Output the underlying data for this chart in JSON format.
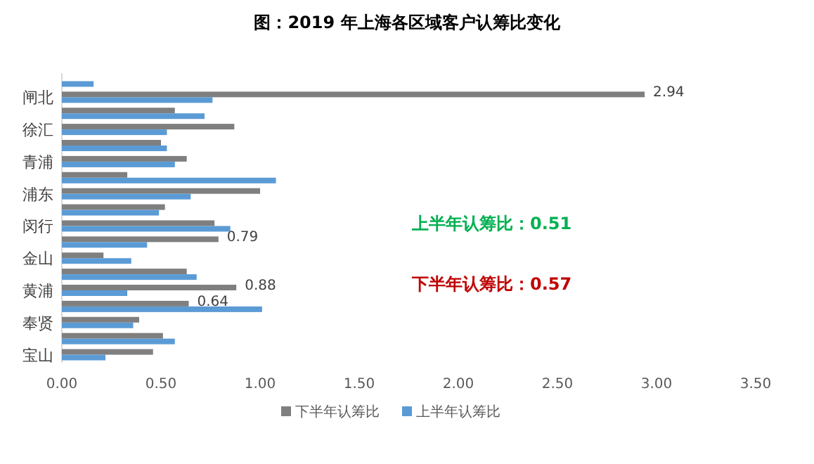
{
  "chart_data": {
    "type": "bar",
    "orientation": "horizontal",
    "title": "图：2019 年上海各区域客户认筹比变化",
    "categories": [
      null,
      "闸北",
      null,
      "徐汇",
      null,
      "青浦",
      null,
      "浦东",
      null,
      "闵行",
      null,
      "金山",
      null,
      "黄浦",
      null,
      "奉贤",
      null,
      "宝山"
    ],
    "series": [
      {
        "name": "下半年认筹比",
        "color": "#7f7f7f",
        "values": [
          null,
          2.94,
          0.57,
          0.87,
          0.5,
          0.63,
          0.33,
          1.0,
          0.52,
          0.77,
          0.79,
          0.21,
          0.63,
          0.88,
          0.64,
          0.39,
          0.51,
          0.46
        ],
        "value_labels": [
          null,
          "2.94",
          null,
          null,
          null,
          null,
          null,
          null,
          null,
          null,
          "0.79",
          null,
          null,
          "0.88",
          "0.64",
          null,
          null,
          null
        ]
      },
      {
        "name": "上半年认筹比",
        "color": "#5b9bd5",
        "values": [
          0.16,
          0.76,
          0.72,
          0.53,
          0.53,
          0.57,
          1.08,
          0.65,
          0.49,
          0.85,
          0.43,
          0.35,
          0.68,
          0.33,
          1.01,
          0.36,
          0.57,
          0.22
        ]
      }
    ],
    "xlim": [
      0,
      3.5
    ],
    "xticks": [
      {
        "value": 0,
        "label": "0.00"
      },
      {
        "value": 0.5,
        "label": "0.50"
      },
      {
        "value": 1,
        "label": "1.00"
      },
      {
        "value": 1.5,
        "label": "1.50"
      },
      {
        "value": 2,
        "label": "2.00"
      },
      {
        "value": 2.5,
        "label": "2.50"
      },
      {
        "value": 3,
        "label": "3.00"
      },
      {
        "value": 3.5,
        "label": "3.50"
      }
    ],
    "grid": false,
    "legend": "bottom",
    "annotations": [
      "上半年认筹比：**0.51**",
      "下半年认筹比：**0.57**"
    ]
  }
}
